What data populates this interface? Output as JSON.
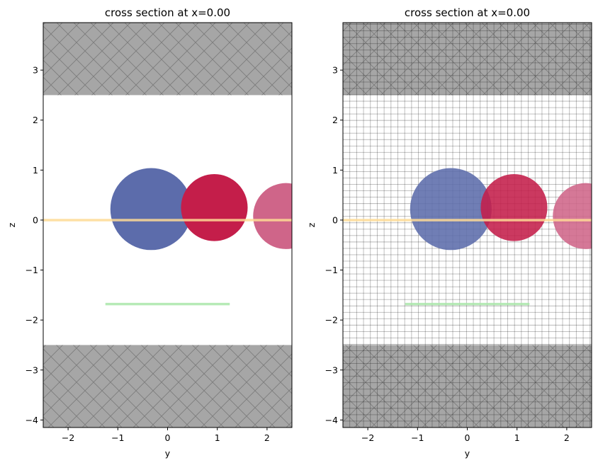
{
  "chart_data": [
    {
      "type": "scatter",
      "title": "cross section at x=0.00",
      "xlabel": "y",
      "ylabel": "z",
      "xlim": [
        -2.5,
        2.5
      ],
      "ylim": [
        -4.15,
        3.95
      ],
      "xticks": [
        -2,
        -1,
        0,
        1,
        2
      ],
      "xtick_labels": [
        "−2",
        "−1",
        "0",
        "1",
        "2"
      ],
      "yticks": [
        3,
        2,
        1,
        0,
        -1,
        -2,
        -3,
        -4
      ],
      "ytick_labels": [
        "3",
        "2",
        "1",
        "0",
        "−1",
        "−2",
        "−3",
        "−4"
      ],
      "show_grid": false,
      "substrate_regions": [
        {
          "name": "top",
          "z_min": 2.5,
          "z_max": 3.95,
          "color": "#a6a6a6"
        },
        {
          "name": "bottom",
          "z_min": -4.15,
          "z_max": -2.5,
          "color": "#a6a6a6"
        }
      ],
      "circles": [
        {
          "cy": -0.33,
          "cz": 0.22,
          "r": 0.82,
          "color": "#5c6cab"
        },
        {
          "cy": 0.94,
          "cz": 0.25,
          "r": 0.67,
          "color": "#c41e4a"
        },
        {
          "cy": 2.38,
          "cz": 0.08,
          "r": 0.66,
          "color": "#cf6589"
        }
      ],
      "lines": [
        {
          "y_min": -2.5,
          "y_max": 2.5,
          "z": 0.0,
          "color": "#fedb95"
        },
        {
          "y_min": -1.25,
          "y_max": 1.25,
          "z": -1.68,
          "color": "#a9e6a9"
        }
      ]
    },
    {
      "type": "scatter",
      "title": "cross section at x=0.00",
      "xlabel": "y",
      "ylabel": "z",
      "xlim": [
        -2.5,
        2.5
      ],
      "ylim": [
        -4.15,
        3.95
      ],
      "xticks": [
        -2,
        -1,
        0,
        1,
        2
      ],
      "xtick_labels": [
        "−2",
        "−1",
        "0",
        "1",
        "2"
      ],
      "yticks": [
        3,
        2,
        1,
        0,
        -1,
        -2,
        -3,
        -4
      ],
      "ytick_labels": [
        "3",
        "2",
        "1",
        "0",
        "−1",
        "−2",
        "−3",
        "−4"
      ],
      "show_grid": true,
      "substrate_regions": [
        {
          "name": "top",
          "z_min": 2.5,
          "z_max": 3.95,
          "color": "#a6a6a6"
        },
        {
          "name": "bottom",
          "z_min": -4.15,
          "z_max": -2.5,
          "color": "#a6a6a6"
        }
      ],
      "circles": [
        {
          "cy": -0.33,
          "cz": 0.22,
          "r": 0.82,
          "color": "#5c6cab"
        },
        {
          "cy": 0.94,
          "cz": 0.25,
          "r": 0.67,
          "color": "#c41e4a"
        },
        {
          "cy": 2.38,
          "cz": 0.08,
          "r": 0.66,
          "color": "#cf6589"
        }
      ],
      "lines": [
        {
          "y_min": -2.5,
          "y_max": 2.5,
          "z": 0.0,
          "color": "#fedb95"
        },
        {
          "y_min": -1.25,
          "y_max": 1.25,
          "z": -1.68,
          "color": "#a9e6a9"
        }
      ]
    }
  ]
}
